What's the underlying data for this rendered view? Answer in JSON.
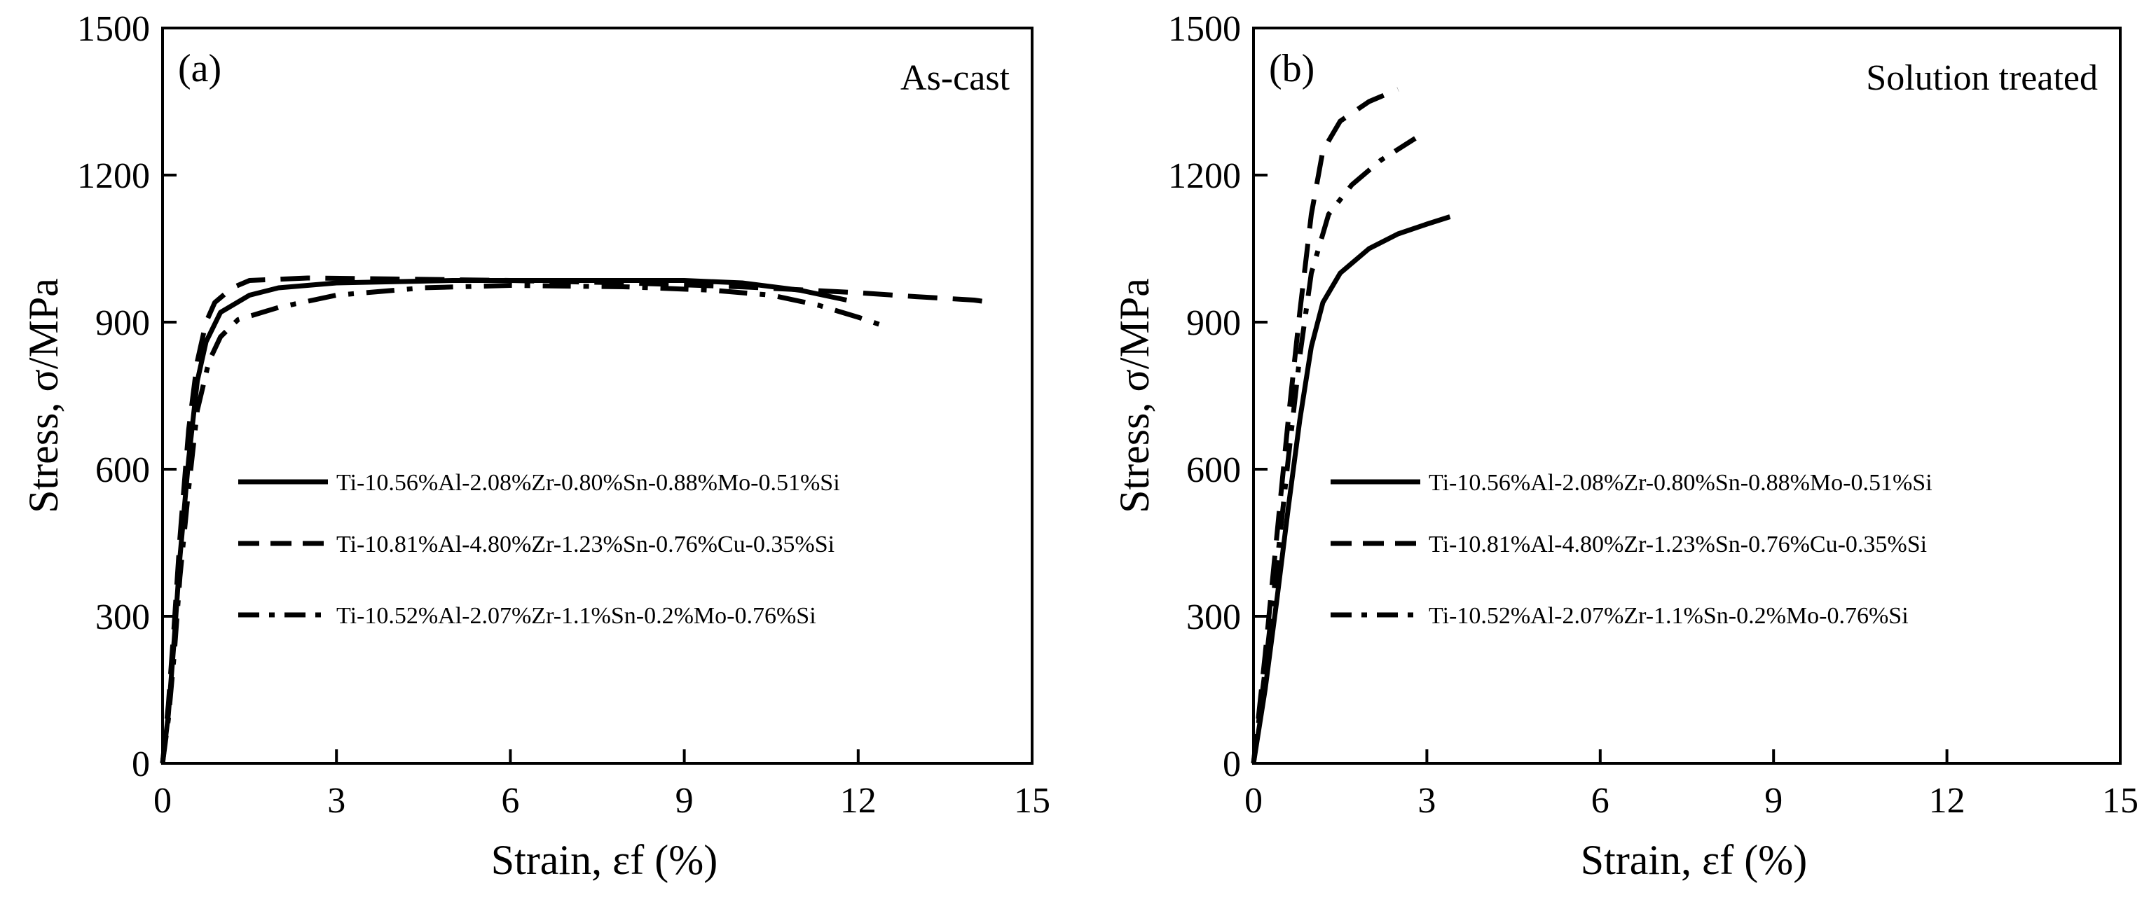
{
  "chart_data": [
    {
      "type": "line",
      "panel_label": "(a)",
      "condition": "As-cast",
      "xlabel": "Strain, εf (%)",
      "ylabel": "Stress, σ/MPa",
      "xlim": [
        0,
        15
      ],
      "ylim": [
        0,
        1500
      ],
      "xticks": [
        0,
        3,
        6,
        9,
        12,
        15
      ],
      "yticks": [
        0,
        300,
        600,
        900,
        1200,
        1500
      ],
      "grid": false,
      "legend_position": "center",
      "series": [
        {
          "name": "Ti-10.56%Al-2.08%Zr-0.80%Sn-0.88%Mo-0.51%Si",
          "style": "solid",
          "points": [
            [
              0,
              0
            ],
            [
              0.1,
              100
            ],
            [
              0.2,
              250
            ],
            [
              0.3,
              420
            ],
            [
              0.45,
              620
            ],
            [
              0.6,
              780
            ],
            [
              0.75,
              860
            ],
            [
              1.0,
              920
            ],
            [
              1.5,
              955
            ],
            [
              2.0,
              970
            ],
            [
              3.0,
              980
            ],
            [
              5.0,
              985
            ],
            [
              7.0,
              985
            ],
            [
              9.0,
              985
            ],
            [
              10.0,
              980
            ],
            [
              11.0,
              965
            ],
            [
              11.8,
              945
            ]
          ]
        },
        {
          "name": "Ti-10.81%Al-4.80%Zr-1.23%Sn-0.76%Cu-0.35%Si",
          "style": "dashed",
          "points": [
            [
              0,
              0
            ],
            [
              0.1,
              120
            ],
            [
              0.2,
              280
            ],
            [
              0.3,
              460
            ],
            [
              0.45,
              680
            ],
            [
              0.6,
              820
            ],
            [
              0.75,
              900
            ],
            [
              0.9,
              940
            ],
            [
              1.2,
              970
            ],
            [
              1.5,
              985
            ],
            [
              2.5,
              990
            ],
            [
              4.0,
              988
            ],
            [
              6.0,
              985
            ],
            [
              8.0,
              980
            ],
            [
              10.0,
              972
            ],
            [
              12.0,
              960
            ],
            [
              13.0,
              952
            ],
            [
              14.0,
              945
            ],
            [
              14.3,
              940
            ]
          ]
        },
        {
          "name": "Ti-10.52%Al-2.07%Zr-1.1%Sn-0.2%Mo-0.76%Si",
          "style": "dash-dot",
          "points": [
            [
              0,
              0
            ],
            [
              0.1,
              90
            ],
            [
              0.2,
              220
            ],
            [
              0.3,
              380
            ],
            [
              0.45,
              560
            ],
            [
              0.6,
              720
            ],
            [
              0.8,
              820
            ],
            [
              1.0,
              870
            ],
            [
              1.3,
              905
            ],
            [
              2.0,
              930
            ],
            [
              3.0,
              955
            ],
            [
              4.5,
              970
            ],
            [
              6.0,
              975
            ],
            [
              8.0,
              972
            ],
            [
              9.5,
              965
            ],
            [
              10.5,
              955
            ],
            [
              11.3,
              935
            ],
            [
              12.0,
              910
            ],
            [
              12.5,
              890
            ]
          ]
        }
      ]
    },
    {
      "type": "line",
      "panel_label": "(b)",
      "condition": "Solution treated",
      "xlabel": "Strain, εf (%)",
      "ylabel": "Stress, σ/MPa",
      "xlim": [
        0,
        15
      ],
      "ylim": [
        0,
        1500
      ],
      "xticks": [
        0,
        3,
        6,
        9,
        12,
        15
      ],
      "yticks": [
        0,
        300,
        600,
        900,
        1200,
        1500
      ],
      "grid": false,
      "legend_position": "center",
      "series": [
        {
          "name": "Ti-10.56%Al-2.08%Zr-0.80%Sn-0.88%Mo-0.51%Si",
          "style": "solid",
          "points": [
            [
              0,
              0
            ],
            [
              0.2,
              150
            ],
            [
              0.4,
              330
            ],
            [
              0.6,
              520
            ],
            [
              0.8,
              700
            ],
            [
              1.0,
              850
            ],
            [
              1.2,
              940
            ],
            [
              1.5,
              1000
            ],
            [
              2.0,
              1050
            ],
            [
              2.5,
              1080
            ],
            [
              3.0,
              1100
            ],
            [
              3.4,
              1115
            ]
          ]
        },
        {
          "name": "Ti-10.81%Al-4.80%Zr-1.23%Sn-0.76%Cu-0.35%Si",
          "style": "dashed",
          "points": [
            [
              0,
              0
            ],
            [
              0.2,
              220
            ],
            [
              0.4,
              460
            ],
            [
              0.6,
              700
            ],
            [
              0.8,
              920
            ],
            [
              1.0,
              1120
            ],
            [
              1.2,
              1250
            ],
            [
              1.5,
              1310
            ],
            [
              2.0,
              1350
            ],
            [
              2.5,
              1375
            ]
          ]
        },
        {
          "name": "Ti-10.52%Al-2.07%Zr-1.1%Sn-0.2%Mo-0.76%Si",
          "style": "dash-dot",
          "points": [
            [
              0,
              0
            ],
            [
              0.2,
              190
            ],
            [
              0.4,
              400
            ],
            [
              0.6,
              620
            ],
            [
              0.8,
              830
            ],
            [
              1.0,
              1000
            ],
            [
              1.3,
              1120
            ],
            [
              1.7,
              1180
            ],
            [
              2.2,
              1230
            ],
            [
              2.8,
              1275
            ]
          ]
        }
      ]
    }
  ]
}
